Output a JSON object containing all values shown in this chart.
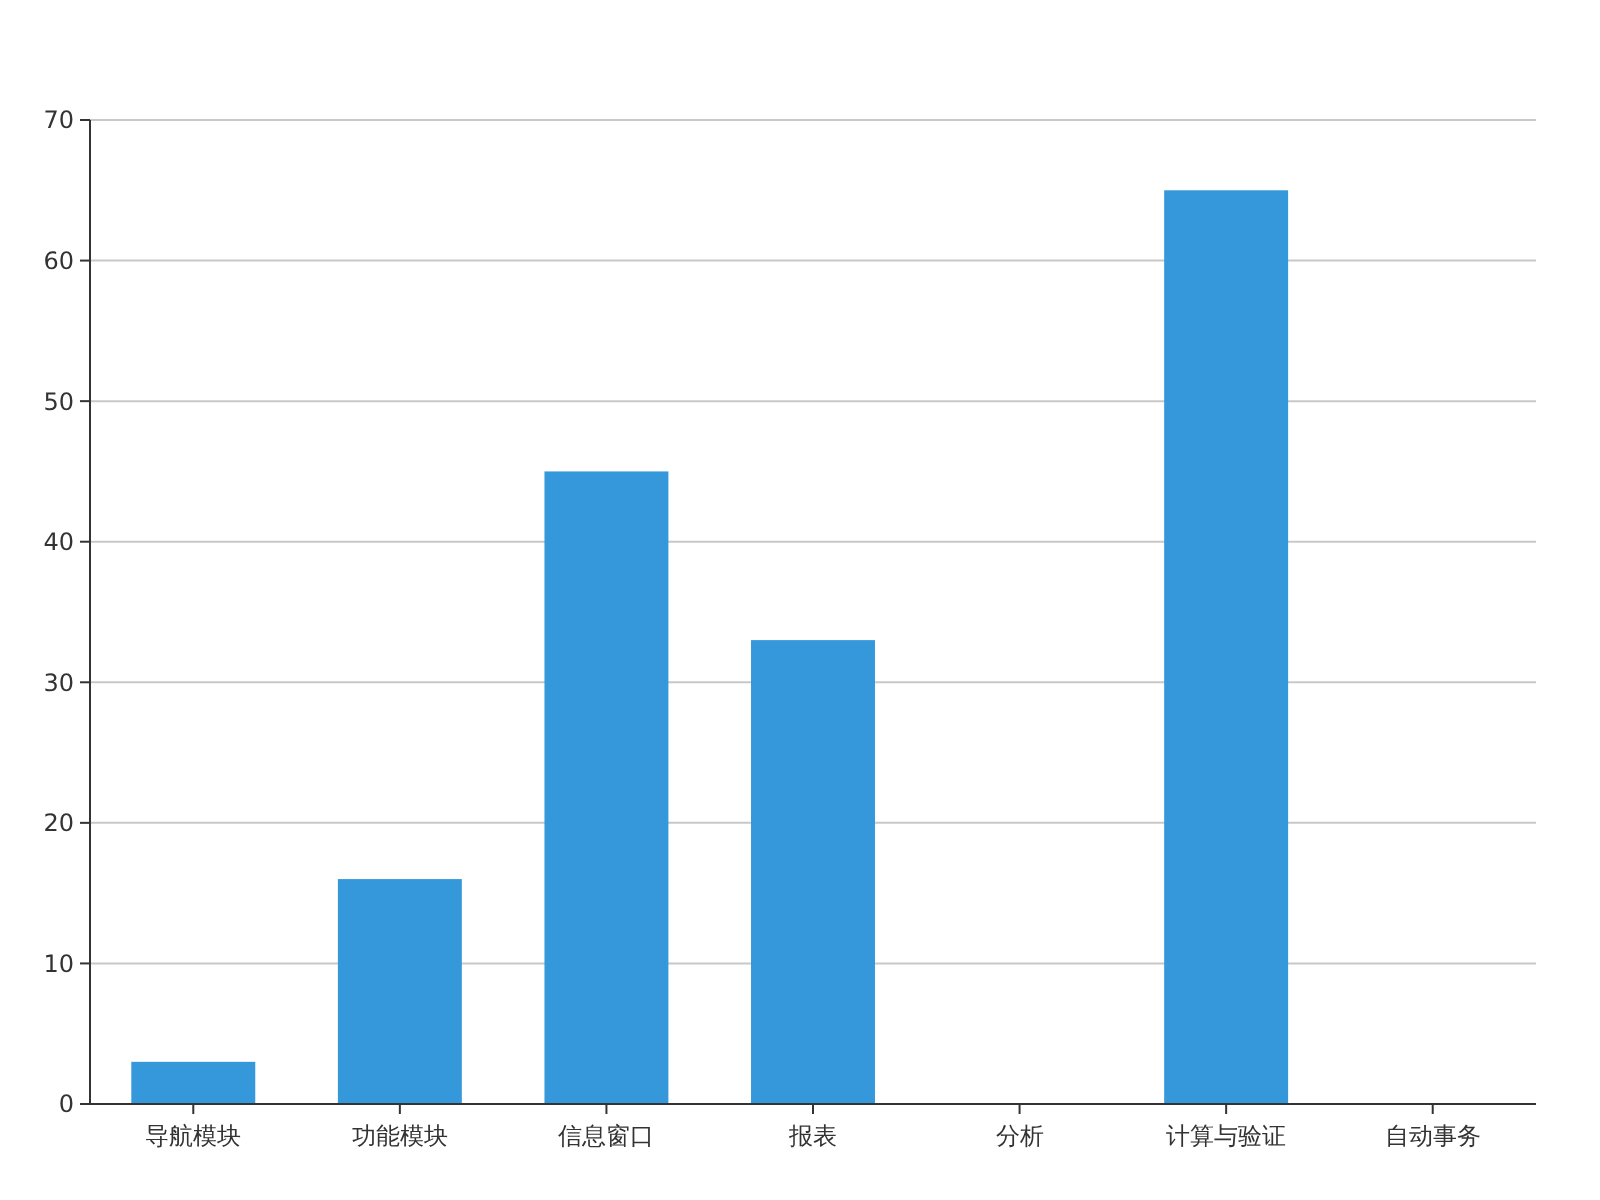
{
  "chart_data": {
    "type": "bar",
    "categories": [
      "导航模块",
      "功能模块",
      "信息窗口",
      "报表",
      "分析",
      "计算与验证",
      "自动事务"
    ],
    "values": [
      3,
      16,
      45,
      33,
      0,
      65,
      0
    ],
    "color": "#3498db",
    "ylim": [
      0,
      70
    ],
    "yticks": [
      0,
      10,
      20,
      30,
      40,
      50,
      60,
      70
    ],
    "grid": "y"
  }
}
